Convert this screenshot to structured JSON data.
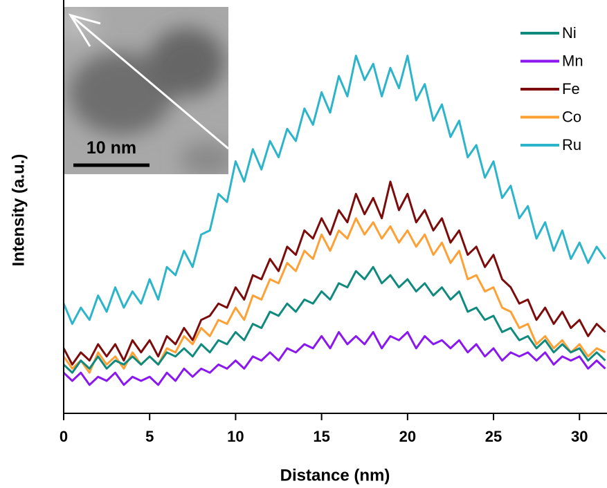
{
  "chart_data": {
    "type": "line",
    "xlabel": "Distance (nm)",
    "ylabel": "Intensity (a.u.)",
    "xlim": [
      0,
      31.6
    ],
    "ylim": [
      0,
      100
    ],
    "xticks": [
      0,
      5,
      10,
      15,
      20,
      25,
      30
    ],
    "legend": "upper right",
    "x": [
      0,
      0.5,
      1,
      1.5,
      2,
      2.5,
      3,
      3.5,
      4,
      4.5,
      5,
      5.5,
      6,
      6.5,
      7,
      7.5,
      8,
      8.5,
      9,
      9.5,
      10,
      10.5,
      11,
      11.5,
      12,
      12.5,
      13,
      13.5,
      14,
      14.5,
      15,
      15.5,
      16,
      16.5,
      17,
      17.5,
      18,
      18.5,
      19,
      19.5,
      20,
      20.5,
      21,
      21.5,
      22,
      22.5,
      23,
      23.5,
      24,
      24.5,
      25,
      25.5,
      26,
      26.5,
      27,
      27.5,
      28,
      28.5,
      29,
      29.5,
      30,
      30.5,
      31,
      31.5
    ],
    "series": [
      {
        "name": "Ni",
        "color": "#108a7f",
        "values": [
          12,
          10,
          13,
          11,
          14,
          11,
          13,
          12,
          14,
          12,
          14,
          12,
          15,
          14,
          16,
          14,
          17,
          15,
          18,
          17,
          20,
          18,
          22,
          21,
          25,
          24,
          27,
          25,
          28,
          27,
          30,
          28,
          32,
          31,
          35,
          33,
          36,
          32,
          34,
          31,
          33,
          30,
          32,
          29,
          31,
          28,
          30,
          25,
          26,
          23,
          24,
          20,
          21,
          18,
          19,
          16,
          18,
          15,
          17,
          15,
          16,
          13,
          15,
          13
        ]
      },
      {
        "name": "Mn",
        "color": "#8a17ef",
        "values": [
          10,
          8,
          10,
          7,
          9,
          8,
          10,
          7,
          9,
          8,
          9,
          7,
          10,
          8,
          11,
          9,
          11,
          10,
          12,
          11,
          13,
          11,
          14,
          13,
          15,
          13,
          16,
          15,
          17,
          16,
          19,
          16,
          20,
          17,
          19,
          17,
          20,
          16,
          19,
          18,
          20,
          16,
          19,
          17,
          18,
          16,
          18,
          15,
          17,
          14,
          16,
          13,
          15,
          14,
          15,
          13,
          15,
          12,
          14,
          13,
          14,
          11,
          13,
          11
        ]
      },
      {
        "name": "Fe",
        "color": "#7c0b0b",
        "values": [
          16,
          12,
          15,
          13,
          17,
          14,
          17,
          13,
          18,
          15,
          18,
          14,
          19,
          17,
          21,
          18,
          23,
          24,
          27,
          26,
          31,
          28,
          34,
          33,
          38,
          35,
          41,
          39,
          45,
          43,
          48,
          44,
          50,
          47,
          54,
          49,
          53,
          48,
          57,
          50,
          54,
          47,
          50,
          45,
          48,
          42,
          45,
          39,
          41,
          36,
          39,
          33,
          31,
          27,
          28,
          23,
          26,
          22,
          25,
          21,
          23,
          19,
          22,
          20
        ]
      },
      {
        "name": "Co",
        "color": "#ffa035",
        "values": [
          14,
          11,
          13,
          10,
          15,
          12,
          14,
          11,
          15,
          12,
          14,
          12,
          16,
          15,
          19,
          17,
          21,
          19,
          23,
          22,
          26,
          23,
          29,
          28,
          33,
          32,
          37,
          35,
          40,
          38,
          44,
          40,
          45,
          43,
          48,
          44,
          47,
          43,
          46,
          42,
          45,
          41,
          44,
          39,
          42,
          37,
          40,
          33,
          34,
          30,
          31,
          26,
          25,
          21,
          22,
          17,
          19,
          16,
          18,
          15,
          17,
          14,
          16,
          15
        ]
      },
      {
        "name": "Ru",
        "color": "#2cb4cb",
        "values": [
          27,
          22,
          26,
          23,
          29,
          25,
          31,
          26,
          30,
          27,
          33,
          28,
          36,
          34,
          40,
          36,
          44,
          45,
          54,
          52,
          62,
          57,
          65,
          60,
          67,
          63,
          70,
          67,
          75,
          71,
          79,
          74,
          83,
          78,
          88,
          82,
          86,
          78,
          85,
          80,
          88,
          77,
          81,
          72,
          76,
          68,
          72,
          63,
          66,
          58,
          62,
          53,
          56,
          48,
          51,
          43,
          47,
          40,
          45,
          38,
          42,
          37,
          41,
          38
        ]
      }
    ]
  },
  "inset": {
    "scale_bar": "10 nm"
  }
}
